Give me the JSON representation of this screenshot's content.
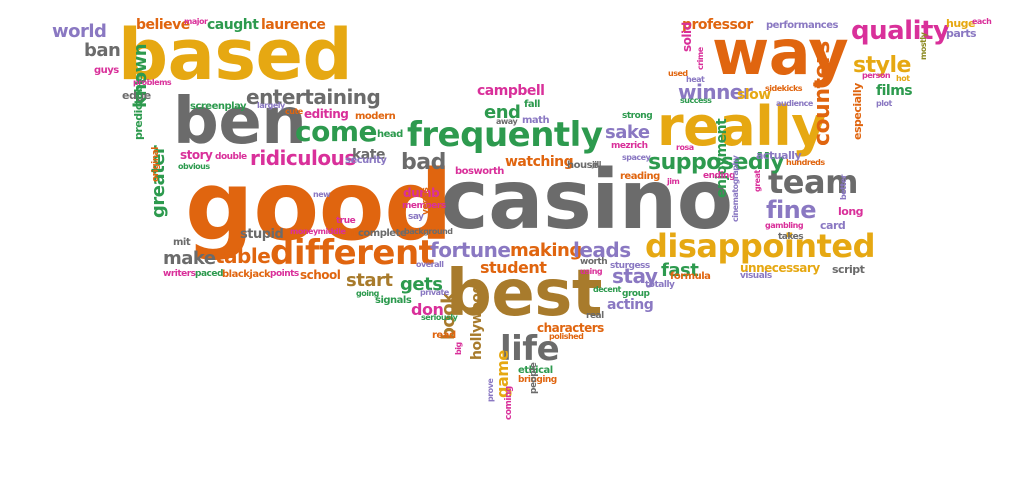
{
  "colors": {
    "orange": "#e0650f",
    "gold": "#e6a812",
    "gray": "#6b6b6b",
    "green": "#2d9a4e",
    "purple": "#8a78c2",
    "magenta": "#d9309a",
    "brown": "#a87b2c",
    "olive": "#8c8a22"
  },
  "words": [
    {
      "text": "casino",
      "color": "gray"
    },
    {
      "text": "good",
      "color": "orange"
    },
    {
      "text": "based",
      "color": "gold"
    },
    {
      "text": "best",
      "color": "brown"
    },
    {
      "text": "ben",
      "color": "gray"
    },
    {
      "text": "way",
      "color": "orange"
    },
    {
      "text": "really",
      "color": "gold"
    },
    {
      "text": "frequently",
      "color": "green"
    },
    {
      "text": "different",
      "color": "orange"
    },
    {
      "text": "disappointed",
      "color": "gold"
    },
    {
      "text": "team",
      "color": "gray"
    },
    {
      "text": "come",
      "color": "green"
    },
    {
      "text": "quality",
      "color": "magenta"
    },
    {
      "text": "life",
      "color": "gray"
    },
    {
      "text": "ridiculous",
      "color": "magenta"
    },
    {
      "text": "fortune",
      "color": "purple"
    },
    {
      "text": "making",
      "color": "orange"
    },
    {
      "text": "leads",
      "color": "purple"
    },
    {
      "text": "entertaining",
      "color": "gray"
    },
    {
      "text": "fine",
      "color": "purple"
    },
    {
      "text": "supposedly",
      "color": "green"
    },
    {
      "text": "table",
      "color": "orange"
    },
    {
      "text": "make",
      "color": "gray"
    },
    {
      "text": "world",
      "color": "purple"
    },
    {
      "text": "ban",
      "color": "gray"
    },
    {
      "text": "believe",
      "color": "orange"
    },
    {
      "text": "caught",
      "color": "green"
    },
    {
      "text": "laurence",
      "color": "orange"
    },
    {
      "text": "professor",
      "color": "orange"
    },
    {
      "text": "performances",
      "color": "purple"
    },
    {
      "text": "winner",
      "color": "purple"
    },
    {
      "text": "style",
      "color": "gold"
    },
    {
      "text": "counters",
      "color": "orange"
    },
    {
      "text": "known",
      "color": "green"
    },
    {
      "text": "greater",
      "color": "green"
    },
    {
      "text": "story",
      "color": "magenta"
    },
    {
      "text": "bad",
      "color": "gray"
    },
    {
      "text": "end",
      "color": "green"
    },
    {
      "text": "sake",
      "color": "purple"
    },
    {
      "text": "watching",
      "color": "orange"
    },
    {
      "text": "campbell",
      "color": "magenta"
    },
    {
      "text": "student",
      "color": "orange"
    },
    {
      "text": "start",
      "color": "brown"
    },
    {
      "text": "gets",
      "color": "green"
    },
    {
      "text": "stay",
      "color": "purple"
    },
    {
      "text": "fast",
      "color": "green"
    },
    {
      "text": "don",
      "color": "magenta"
    },
    {
      "text": "book",
      "color": "brown"
    },
    {
      "text": "hollywood",
      "color": "brown"
    },
    {
      "text": "game",
      "color": "gold"
    },
    {
      "text": "acting",
      "color": "purple"
    },
    {
      "text": "characters",
      "color": "orange"
    },
    {
      "text": "films",
      "color": "green"
    },
    {
      "text": "slow",
      "color": "gold"
    },
    {
      "text": "kate",
      "color": "gray"
    },
    {
      "text": "editing",
      "color": "magenta"
    },
    {
      "text": "enjoyment",
      "color": "green"
    },
    {
      "text": "unnecessary",
      "color": "gold"
    },
    {
      "text": "school",
      "color": "orange"
    },
    {
      "text": "stupid",
      "color": "gray"
    },
    {
      "text": "dumb",
      "color": "magenta"
    },
    {
      "text": "bosworth",
      "color": "magenta"
    },
    {
      "text": "screenplay",
      "color": "green"
    },
    {
      "text": "solid",
      "color": "magenta"
    },
    {
      "text": "head",
      "color": "green"
    },
    {
      "text": "huge",
      "color": "gold"
    },
    {
      "text": "parts",
      "color": "purple"
    },
    {
      "text": "edge",
      "color": "gray"
    },
    {
      "text": "predictable",
      "color": "green"
    },
    {
      "text": "modern",
      "color": "orange"
    },
    {
      "text": "security",
      "color": "purple"
    },
    {
      "text": "blackjack",
      "color": "orange"
    },
    {
      "text": "writers",
      "color": "magenta"
    },
    {
      "text": "paced",
      "color": "green"
    },
    {
      "text": "points",
      "color": "magenta"
    },
    {
      "text": "signals",
      "color": "green"
    },
    {
      "text": "complete",
      "color": "gray"
    },
    {
      "text": "kevin",
      "color": "orange"
    },
    {
      "text": "real",
      "color": "gray"
    },
    {
      "text": "group",
      "color": "green"
    },
    {
      "text": "totally",
      "color": "purple"
    },
    {
      "text": "worth",
      "color": "gray"
    },
    {
      "text": "decent",
      "color": "green"
    },
    {
      "text": "private",
      "color": "purple"
    },
    {
      "text": "ethical",
      "color": "green"
    },
    {
      "text": "bringing",
      "color": "orange"
    },
    {
      "text": "polished",
      "color": "orange"
    },
    {
      "text": "read",
      "color": "orange"
    },
    {
      "text": "people",
      "color": "gray"
    },
    {
      "text": "prove",
      "color": "purple"
    },
    {
      "text": "coming",
      "color": "magenta"
    },
    {
      "text": "card",
      "color": "purple"
    },
    {
      "text": "script",
      "color": "gray"
    },
    {
      "text": "long",
      "color": "magenta"
    },
    {
      "text": "actually",
      "color": "purple"
    },
    {
      "text": "formula",
      "color": "orange"
    },
    {
      "text": "visuals",
      "color": "purple"
    },
    {
      "text": "takes",
      "color": "gray"
    },
    {
      "text": "gambling",
      "color": "magenta"
    },
    {
      "text": "strong",
      "color": "green"
    },
    {
      "text": "mezrich",
      "color": "magenta"
    },
    {
      "text": "reading",
      "color": "orange"
    },
    {
      "text": "ending",
      "color": "magenta"
    },
    {
      "text": "fall",
      "color": "green"
    },
    {
      "text": "math",
      "color": "purple"
    },
    {
      "text": "especially",
      "color": "orange"
    },
    {
      "text": "guys",
      "color": "magenta"
    },
    {
      "text": "major",
      "color": "magenta"
    },
    {
      "text": "success",
      "color": "green"
    },
    {
      "text": "audience",
      "color": "purple"
    },
    {
      "text": "sidekicks",
      "color": "orange"
    },
    {
      "text": "person",
      "color": "magenta"
    },
    {
      "text": "plot",
      "color": "purple"
    },
    {
      "text": "hundreds",
      "color": "orange"
    },
    {
      "text": "great",
      "color": "magenta"
    },
    {
      "text": "better",
      "color": "purple"
    },
    {
      "text": "original",
      "color": "orange"
    },
    {
      "text": "obvious",
      "color": "green"
    },
    {
      "text": "double",
      "color": "magenta"
    },
    {
      "text": "largely",
      "color": "purple"
    },
    {
      "text": "cute",
      "color": "orange"
    },
    {
      "text": "moneymiddle",
      "color": "magenta"
    },
    {
      "text": "new",
      "color": "purple"
    },
    {
      "text": "members",
      "color": "magenta"
    },
    {
      "text": "vegas",
      "color": "orange"
    },
    {
      "text": "background",
      "color": "gray"
    },
    {
      "text": "sturgess",
      "color": "purple"
    },
    {
      "text": "using",
      "color": "magenta"
    },
    {
      "text": "seriously",
      "color": "green"
    },
    {
      "text": "going",
      "color": "green"
    },
    {
      "text": "overall",
      "color": "purple"
    },
    {
      "text": "mit",
      "color": "gray"
    },
    {
      "text": "true",
      "color": "magenta"
    },
    {
      "text": "say",
      "color": "purple"
    },
    {
      "text": "house",
      "color": "gray"
    },
    {
      "text": "jill",
      "color": "gray"
    },
    {
      "text": "rosa",
      "color": "magenta"
    },
    {
      "text": "spacey",
      "color": "purple"
    },
    {
      "text": "away",
      "color": "gray"
    },
    {
      "text": "problems",
      "color": "magenta"
    },
    {
      "text": "cinematography",
      "color": "purple"
    },
    {
      "text": "big",
      "color": "magenta"
    },
    {
      "text": "used",
      "color": "orange"
    },
    {
      "text": "heat",
      "color": "purple"
    },
    {
      "text": "crime",
      "color": "magenta"
    },
    {
      "text": "mostly",
      "color": "olive"
    },
    {
      "text": "each",
      "color": "magenta"
    },
    {
      "text": "jim",
      "color": "magenta"
    },
    {
      "text": "hot",
      "color": "gold"
    }
  ]
}
